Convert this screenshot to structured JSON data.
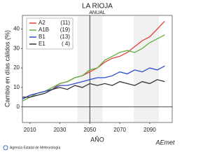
{
  "chart_data": {
    "type": "line",
    "title": "LA RIOJA",
    "subtitle": "ANUAL",
    "x_label": "AÑO",
    "y_label": "Cambio en días cálidos (%)",
    "x": [
      2005,
      2010,
      2015,
      2020,
      2025,
      2030,
      2035,
      2040,
      2045,
      2050,
      2055,
      2060,
      2065,
      2070,
      2075,
      2080,
      2085,
      2090,
      2095,
      2100
    ],
    "series": [
      {
        "name": "A2",
        "count_label": "(11)",
        "color": "#e8413a",
        "values": [
          4,
          6,
          7,
          8,
          9,
          12,
          13,
          15,
          16,
          18,
          20,
          23,
          25,
          26,
          28,
          31,
          34,
          36,
          40,
          44
        ]
      },
      {
        "name": "A1B",
        "count_label": "(19)",
        "color": "#5fb040",
        "values": [
          3,
          5,
          7,
          8,
          10,
          12,
          13,
          15,
          16,
          19,
          20,
          24,
          26,
          28,
          29,
          28,
          30,
          33,
          35,
          37
        ]
      },
      {
        "name": "B1",
        "count_label": "(13)",
        "color": "#2b4bd0",
        "values": [
          4,
          6,
          7,
          8,
          9,
          11,
          11,
          12,
          13,
          14,
          15,
          15,
          16,
          18,
          17,
          19,
          18,
          20,
          19,
          21
        ]
      },
      {
        "name": "E1",
        "count_label": "( 4)",
        "color": "#333333",
        "values": [
          5,
          5,
          6,
          7,
          9,
          10,
          9,
          11,
          10,
          12,
          11,
          12,
          11,
          13,
          12,
          11,
          13,
          12,
          14,
          13
        ]
      }
    ],
    "xlim": [
      2005,
      2105
    ],
    "xticks": [
      2010,
      2030,
      2050,
      2070,
      2090
    ],
    "ylim": [
      -8,
      47
    ],
    "yticks": [
      0,
      10,
      20,
      30,
      40
    ],
    "legend": "upper-left",
    "footer": "Agencia Estatal de Meteorología",
    "logo": "AEmet"
  }
}
